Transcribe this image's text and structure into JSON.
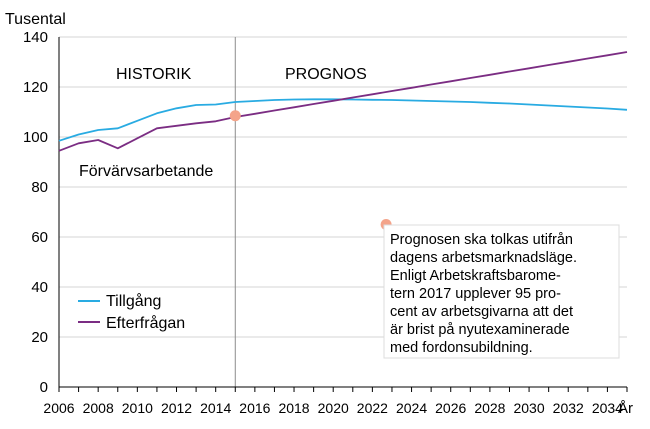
{
  "chart_data": {
    "type": "line",
    "ylabel": "Tusental",
    "xlabel": "År",
    "ylim": [
      0,
      140
    ],
    "yticks": [
      0,
      20,
      40,
      60,
      80,
      100,
      120,
      140
    ],
    "xlim": [
      2006,
      2035
    ],
    "xticks": [
      2006,
      2008,
      2010,
      2012,
      2014,
      2016,
      2018,
      2020,
      2022,
      2024,
      2026,
      2028,
      2030,
      2032,
      2034
    ],
    "grid": "horizontal",
    "legend_position": "bottom-left",
    "divider_year": 2015,
    "region_labels": [
      "HISTORIK",
      "PROGNOS"
    ],
    "subtitle": "Förvärvsarbetande",
    "series": [
      {
        "name": "Tillgång",
        "color": "#29abe2",
        "x": [
          2006,
          2007,
          2008,
          2009,
          2010,
          2011,
          2012,
          2013,
          2014,
          2015,
          2016,
          2017,
          2018,
          2019,
          2020,
          2021,
          2022,
          2023,
          2024,
          2025,
          2026,
          2027,
          2028,
          2029,
          2030,
          2031,
          2032,
          2033,
          2034,
          2035
        ],
        "values": [
          98.5,
          101,
          102.8,
          103.5,
          106.5,
          109.5,
          111.5,
          112.8,
          113,
          114,
          114.4,
          114.8,
          115,
          115.1,
          115.1,
          115,
          114.9,
          114.8,
          114.6,
          114.4,
          114.2,
          114,
          113.7,
          113.4,
          113,
          112.6,
          112.2,
          111.8,
          111.4,
          110.9
        ]
      },
      {
        "name": "Efterfrågan",
        "color": "#7b2d83",
        "x": [
          2006,
          2007,
          2008,
          2009,
          2010,
          2011,
          2012,
          2013,
          2014,
          2015,
          2016,
          2017,
          2018,
          2019,
          2020,
          2021,
          2022,
          2023,
          2024,
          2025,
          2026,
          2027,
          2028,
          2029,
          2030,
          2031,
          2032,
          2033,
          2034,
          2035
        ],
        "values": [
          94.5,
          97.5,
          98.8,
          95.5,
          99.5,
          103.5,
          104.5,
          105.5,
          106.3,
          108,
          109.3,
          110.6,
          111.9,
          113.2,
          114.5,
          115.8,
          117.1,
          118.4,
          119.7,
          121,
          122.3,
          123.6,
          124.9,
          126.2,
          127.5,
          128.8,
          130.1,
          131.4,
          132.7,
          134
        ]
      }
    ],
    "markers": [
      {
        "x": 2015,
        "y": 108.5,
        "color": "#f4a48a"
      },
      {
        "x": 2022.7,
        "y": 65,
        "color": "#f4a48a"
      }
    ],
    "note_lines": [
      "Prognosen ska tolkas utifrån",
      "dagens arbetsmarknadsläge.",
      "Enligt Arbetskraftsbarome-",
      "tern 2017 upplever 95 pro-",
      "cent av arbetsgivarna att det",
      "är brist på nyutexaminerade",
      "med fordonsubildning."
    ]
  }
}
